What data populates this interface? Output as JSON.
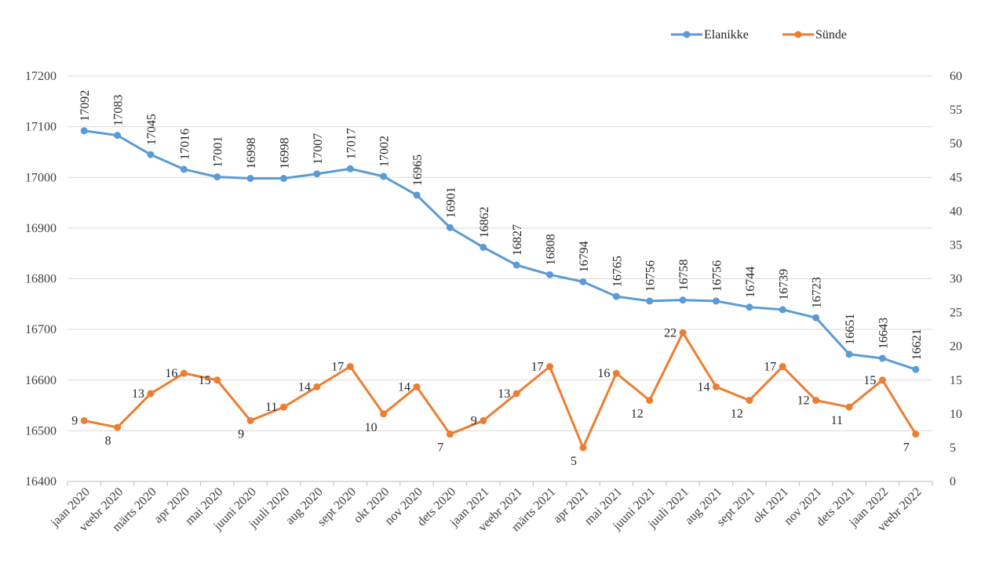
{
  "chart_data": {
    "type": "line",
    "categories": [
      "jaan 2020",
      "veebr 2020",
      "märts 2020",
      "apr 2020",
      "mai 2020",
      "juuni 2020",
      "juuli 2020",
      "aug 2020",
      "sept 2020",
      "okt 2020",
      "nov 2020",
      "dets 2020",
      "jaan 2021",
      "veebr 2021",
      "märts 2021",
      "apr 2021",
      "mai 2021",
      "juuni 2021",
      "juuli 2021",
      "aug 2021",
      "sept 2021",
      "okt 2021",
      "nov 2021",
      "dets 2021",
      "jaan 2022",
      "veebr 2022"
    ],
    "series": [
      {
        "name": "Elanikke",
        "axis": "left",
        "color": "#5B9BD5",
        "values": [
          17092,
          17083,
          17045,
          17016,
          17001,
          16998,
          16998,
          17007,
          17017,
          17002,
          16965,
          16901,
          16862,
          16827,
          16808,
          16794,
          16765,
          16756,
          16758,
          16756,
          16744,
          16739,
          16723,
          16651,
          16643,
          16621
        ]
      },
      {
        "name": "Sünde",
        "axis": "right",
        "color": "#ED7D31",
        "values": [
          9,
          8,
          13,
          16,
          15,
          9,
          11,
          14,
          17,
          10,
          14,
          7,
          9,
          13,
          17,
          5,
          16,
          12,
          22,
          14,
          12,
          17,
          12,
          11,
          15,
          7
        ]
      }
    ],
    "left_axis": {
      "min": 16400,
      "max": 17200,
      "step": 100,
      "ticks": [
        "16400",
        "16500",
        "16600",
        "16700",
        "16800",
        "16900",
        "17000",
        "17100",
        "17200"
      ]
    },
    "right_axis": {
      "min": 0,
      "max": 60,
      "step": 5,
      "ticks": [
        "0",
        "5",
        "10",
        "15",
        "20",
        "25",
        "30",
        "35",
        "40",
        "45",
        "50",
        "55",
        "60"
      ]
    },
    "grid": true,
    "legend_position": "top-right",
    "data_labels": true
  }
}
